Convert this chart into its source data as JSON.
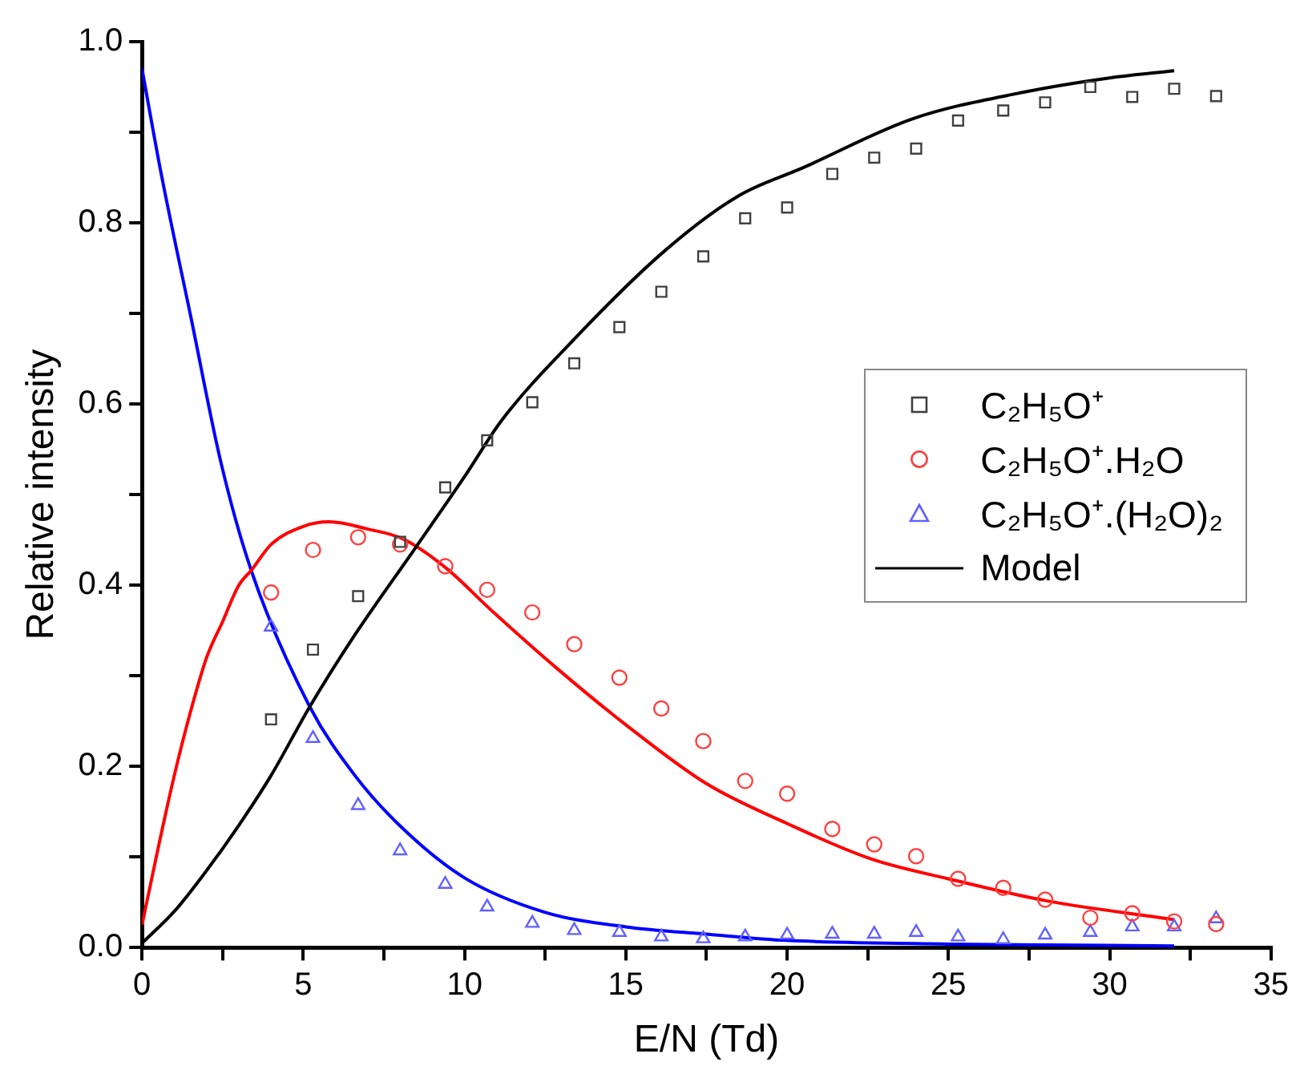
{
  "chart_data": {
    "type": "scatter",
    "xlabel": "E/N (Td)",
    "ylabel": "Relative intensity",
    "xlim": [
      0,
      35
    ],
    "ylim": [
      0,
      1
    ],
    "xticks": [
      0,
      {
        "value": 2.5,
        "label": null
      },
      5,
      {
        "value": 7.5,
        "label": null
      },
      10,
      {
        "value": 12.5,
        "label": null
      },
      15,
      {
        "value": 17.5,
        "label": null
      },
      20,
      {
        "value": 22.5,
        "label": null
      },
      25,
      {
        "value": 27.5,
        "label": null
      },
      30,
      {
        "value": 32.5,
        "label": null
      },
      35
    ],
    "yticks": [
      {
        "value": 0,
        "label": "0.0"
      },
      {
        "value": 0.1,
        "label": null
      },
      {
        "value": 0.2,
        "label": "0.2"
      },
      {
        "value": 0.3,
        "label": null
      },
      {
        "value": 0.4,
        "label": "0.4"
      },
      {
        "value": 0.5,
        "label": null
      },
      {
        "value": 0.6,
        "label": "0.6"
      },
      {
        "value": 0.7,
        "label": null
      },
      {
        "value": 0.8,
        "label": "0.8"
      },
      {
        "value": 0.9,
        "label": null
      },
      {
        "value": 1,
        "label": "1.0"
      }
    ],
    "grid": false,
    "legend": "right",
    "line_style": "solid",
    "x": [
      4.0,
      5.3,
      6.7,
      8.0,
      9.4,
      10.7,
      12.1,
      13.4,
      14.8,
      16.1,
      17.4,
      18.7,
      20.0,
      21.4,
      22.7,
      24.0,
      25.3,
      26.7,
      28.0,
      29.4,
      30.7,
      32.0,
      33.3
    ],
    "series": [
      {
        "name": "C₂H₅O⁺",
        "marker": "square",
        "color": "#404040",
        "values": [
          0.252,
          0.329,
          0.388,
          0.448,
          0.508,
          0.56,
          0.602,
          0.645,
          0.685,
          0.724,
          0.763,
          0.805,
          0.817,
          0.854,
          0.872,
          0.882,
          0.913,
          0.924,
          0.933,
          0.95,
          0.939,
          0.948,
          0.94
        ]
      },
      {
        "name": "C₂H₅O⁺.H₂O",
        "marker": "circle",
        "color": "#ff4040",
        "values": [
          0.392,
          0.439,
          0.453,
          0.445,
          0.421,
          0.395,
          0.37,
          0.335,
          0.298,
          0.264,
          0.228,
          0.184,
          0.17,
          0.131,
          0.114,
          0.101,
          0.076,
          0.066,
          0.053,
          0.033,
          0.038,
          0.029,
          0.026
        ]
      },
      {
        "name": "C₂H₅O⁺.(H₂O)₂",
        "marker": "triangle",
        "color": "#6060ff",
        "values": [
          0.354,
          0.231,
          0.157,
          0.107,
          0.07,
          0.045,
          0.027,
          0.019,
          0.017,
          0.012,
          0.01,
          0.012,
          0.014,
          0.015,
          0.015,
          0.017,
          0.012,
          0.009,
          0.014,
          0.017,
          0.023,
          0.023,
          0.032
        ]
      },
      {
        "name": "Model",
        "type": "line",
        "marker": "none",
        "color": "#000000",
        "x": [
          0,
          1,
          2,
          3,
          4,
          5.2,
          6.5,
          8.45,
          10,
          11.15,
          13.3,
          16.2,
          18.5,
          20.5,
          23.9,
          27.3,
          30,
          32
        ],
        "values": [
          0.005,
          0.04,
          0.085,
          0.135,
          0.19,
          0.266,
          0.34,
          0.44,
          0.52,
          0.582,
          0.668,
          0.769,
          0.83,
          0.861,
          0.915,
          0.944,
          0.96,
          0.968
        ]
      },
      {
        "type": "line",
        "marker": "none",
        "color": "#ff0000",
        "x": [
          0,
          0.5,
          1,
          1.5,
          2,
          2.5,
          3,
          3.4,
          4,
          5,
          5.8,
          7,
          8.1,
          9.46,
          10.78,
          12.84,
          15,
          17.5,
          20,
          22.6,
          25,
          28,
          32
        ],
        "values": [
          0.025,
          0.11,
          0.19,
          0.26,
          0.32,
          0.36,
          0.4,
          0.417,
          0.445,
          0.465,
          0.47,
          0.462,
          0.451,
          0.418,
          0.374,
          0.309,
          0.246,
          0.181,
          0.137,
          0.098,
          0.076,
          0.052,
          0.031
        ]
      },
      {
        "type": "line",
        "marker": "none",
        "color": "#0000ff",
        "x": [
          0,
          0.59,
          1.52,
          2.45,
          3.38,
          5.2,
          6.6,
          8.1,
          10,
          12.5,
          15,
          17.5,
          20,
          25,
          32
        ],
        "values": [
          0.97,
          0.855,
          0.695,
          0.535,
          0.417,
          0.266,
          0.19,
          0.131,
          0.077,
          0.039,
          0.023,
          0.015,
          0.008,
          0.004,
          0.002
        ]
      }
    ]
  }
}
